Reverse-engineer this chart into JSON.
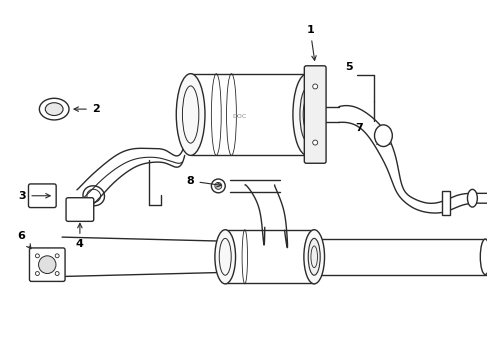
{
  "background_color": "#ffffff",
  "line_color": "#2a2a2a",
  "label_color": "#000000",
  "lw": 1.0,
  "fig_width": 4.9,
  "fig_height": 3.6,
  "dpi": 100
}
